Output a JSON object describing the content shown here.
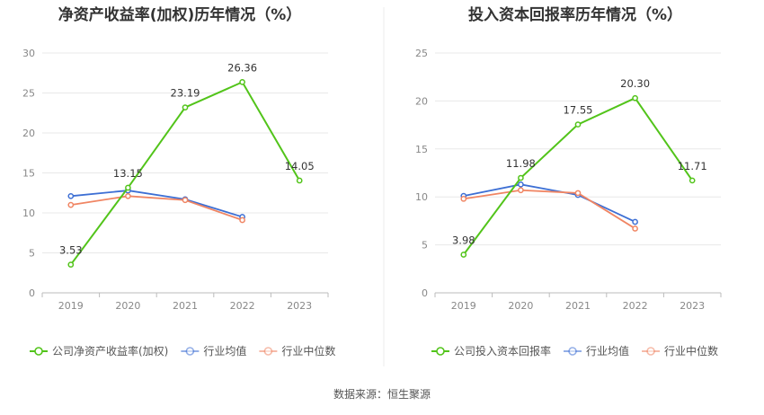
{
  "source": "数据来源：恒生聚源",
  "chart_data": [
    {
      "type": "line",
      "title": "净资产收益率(加权)历年情况（%）",
      "categories": [
        "2019",
        "2020",
        "2021",
        "2022",
        "2023"
      ],
      "ylim": [
        0,
        30
      ],
      "yticks": [
        0,
        5,
        10,
        15,
        20,
        25,
        30
      ],
      "grid": true,
      "legend_position": "bottom",
      "series": [
        {
          "name": "公司净资产收益率(加权)",
          "color": "#52c41a",
          "values": [
            3.53,
            13.15,
            23.19,
            26.36,
            14.05
          ],
          "labels": [
            "3.53",
            "13.15",
            "23.19",
            "26.36",
            "14.05"
          ]
        },
        {
          "name": "行业均值",
          "color": "#3d6fd4",
          "values": [
            12.1,
            12.8,
            11.7,
            9.5,
            null
          ]
        },
        {
          "name": "行业中位数",
          "color": "#f08563",
          "values": [
            11.0,
            12.1,
            11.6,
            9.1,
            null
          ]
        }
      ]
    },
    {
      "type": "line",
      "title": "投入资本回报率历年情况（%）",
      "categories": [
        "2019",
        "2020",
        "2021",
        "2022",
        "2023"
      ],
      "ylim": [
        0,
        25
      ],
      "yticks": [
        0,
        5,
        10,
        15,
        20,
        25
      ],
      "grid": true,
      "legend_position": "bottom",
      "series": [
        {
          "name": "公司投入资本回报率",
          "color": "#52c41a",
          "values": [
            3.98,
            11.98,
            17.55,
            20.3,
            11.71
          ],
          "labels": [
            "3.98",
            "11.98",
            "17.55",
            "20.30",
            "11.71"
          ]
        },
        {
          "name": "行业均值",
          "color": "#3d6fd4",
          "values": [
            10.1,
            11.3,
            10.2,
            7.4,
            null
          ]
        },
        {
          "name": "行业中位数",
          "color": "#f08563",
          "values": [
            9.8,
            10.7,
            10.4,
            6.7,
            null
          ]
        }
      ]
    }
  ]
}
